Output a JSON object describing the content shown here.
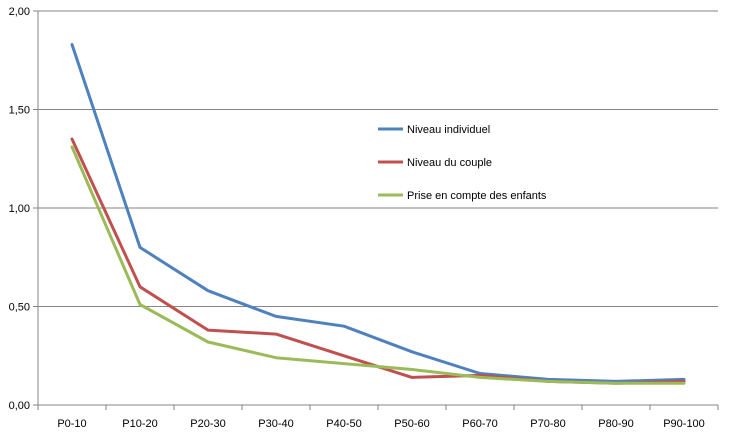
{
  "chart_data": {
    "type": "line",
    "categories": [
      "P0-10",
      "P10-20",
      "P20-30",
      "P30-40",
      "P40-50",
      "P50-60",
      "P60-70",
      "P70-80",
      "P80-90",
      "P90-100"
    ],
    "ylim": [
      0,
      2
    ],
    "y_ticks": [
      "0,00",
      "0,50",
      "1,00",
      "1,50",
      "2,00"
    ],
    "grid": true,
    "legend_position": "inside-right",
    "series": [
      {
        "name": "Niveau individuel",
        "color": "#4f81bd",
        "values": [
          1.83,
          0.8,
          0.58,
          0.45,
          0.4,
          0.27,
          0.16,
          0.13,
          0.12,
          0.13
        ]
      },
      {
        "name": "Niveau du couple",
        "color": "#c0504d",
        "values": [
          1.35,
          0.6,
          0.38,
          0.36,
          0.25,
          0.14,
          0.15,
          0.12,
          0.11,
          0.12
        ]
      },
      {
        "name": "Prise en compte des enfants",
        "color": "#9bbb59",
        "values": [
          1.31,
          0.51,
          0.32,
          0.24,
          0.21,
          0.18,
          0.14,
          0.12,
          0.11,
          0.11
        ]
      }
    ]
  }
}
